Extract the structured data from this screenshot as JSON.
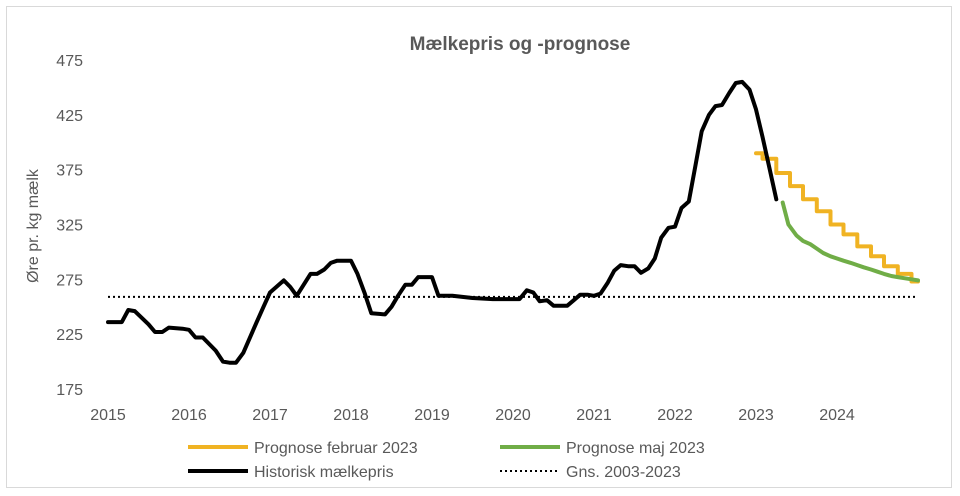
{
  "chart_data": {
    "type": "line",
    "title": "Mælkepris og -prognose",
    "xlabel": "",
    "ylabel": "Øre pr. kg mælk",
    "xlim": [
      2015,
      2025
    ],
    "ylim": [
      175,
      475
    ],
    "yticks": [
      175,
      225,
      275,
      325,
      375,
      425,
      475
    ],
    "xticks": [
      2015,
      2016,
      2017,
      2018,
      2019,
      2020,
      2021,
      2022,
      2023,
      2024
    ],
    "grid": false,
    "legend_position": "bottom",
    "series": [
      {
        "name": "Prognose februar 2023",
        "color": "#f0b323",
        "style": "solid",
        "points": [
          [
            2023.0,
            390
          ],
          [
            2023.08,
            390
          ],
          [
            2023.08,
            385
          ],
          [
            2023.25,
            385
          ],
          [
            2023.25,
            372
          ],
          [
            2023.42,
            372
          ],
          [
            2023.42,
            360
          ],
          [
            2023.58,
            360
          ],
          [
            2023.58,
            348
          ],
          [
            2023.75,
            348
          ],
          [
            2023.75,
            337
          ],
          [
            2023.92,
            337
          ],
          [
            2023.92,
            325
          ],
          [
            2024.08,
            325
          ],
          [
            2024.08,
            316
          ],
          [
            2024.25,
            316
          ],
          [
            2024.25,
            305
          ],
          [
            2024.42,
            305
          ],
          [
            2024.42,
            296
          ],
          [
            2024.58,
            296
          ],
          [
            2024.58,
            287
          ],
          [
            2024.75,
            287
          ],
          [
            2024.75,
            280
          ],
          [
            2024.92,
            280
          ],
          [
            2024.92,
            273
          ],
          [
            2025.0,
            273
          ]
        ]
      },
      {
        "name": "Prognose maj 2023",
        "color": "#70ad47",
        "style": "solid",
        "points": [
          [
            2023.33,
            345
          ],
          [
            2023.4,
            325
          ],
          [
            2023.5,
            315
          ],
          [
            2023.58,
            310
          ],
          [
            2023.67,
            307
          ],
          [
            2023.75,
            303
          ],
          [
            2023.83,
            299
          ],
          [
            2023.92,
            296
          ],
          [
            2024.0,
            294
          ],
          [
            2024.08,
            292
          ],
          [
            2024.17,
            290
          ],
          [
            2024.25,
            288
          ],
          [
            2024.33,
            286
          ],
          [
            2024.42,
            284
          ],
          [
            2024.5,
            282
          ],
          [
            2024.58,
            280
          ],
          [
            2024.67,
            278
          ],
          [
            2024.75,
            277
          ],
          [
            2024.83,
            276
          ],
          [
            2024.92,
            275
          ],
          [
            2025.0,
            274
          ]
        ]
      },
      {
        "name": "Historisk mælkepris",
        "color": "#000000",
        "style": "solid",
        "points": [
          [
            2015.0,
            236
          ],
          [
            2015.17,
            236
          ],
          [
            2015.25,
            247
          ],
          [
            2015.33,
            246
          ],
          [
            2015.5,
            234
          ],
          [
            2015.58,
            227
          ],
          [
            2015.67,
            227
          ],
          [
            2015.75,
            231
          ],
          [
            2015.92,
            230
          ],
          [
            2016.0,
            229
          ],
          [
            2016.08,
            222
          ],
          [
            2016.17,
            222
          ],
          [
            2016.33,
            210
          ],
          [
            2016.42,
            200
          ],
          [
            2016.5,
            199
          ],
          [
            2016.58,
            199
          ],
          [
            2016.67,
            208
          ],
          [
            2016.83,
            235
          ],
          [
            2016.92,
            250
          ],
          [
            2017.0,
            263
          ],
          [
            2017.17,
            274
          ],
          [
            2017.25,
            268
          ],
          [
            2017.33,
            260
          ],
          [
            2017.5,
            280
          ],
          [
            2017.58,
            280
          ],
          [
            2017.67,
            284
          ],
          [
            2017.75,
            290
          ],
          [
            2017.83,
            292
          ],
          [
            2018.0,
            292
          ],
          [
            2018.08,
            280
          ],
          [
            2018.17,
            262
          ],
          [
            2018.25,
            244
          ],
          [
            2018.42,
            243
          ],
          [
            2018.5,
            250
          ],
          [
            2018.58,
            260
          ],
          [
            2018.67,
            270
          ],
          [
            2018.75,
            270
          ],
          [
            2018.83,
            277
          ],
          [
            2019.0,
            277
          ],
          [
            2019.08,
            260
          ],
          [
            2019.25,
            260
          ],
          [
            2019.5,
            258
          ],
          [
            2019.75,
            257
          ],
          [
            2020.0,
            257
          ],
          [
            2020.08,
            257
          ],
          [
            2020.17,
            265
          ],
          [
            2020.25,
            263
          ],
          [
            2020.33,
            255
          ],
          [
            2020.42,
            256
          ],
          [
            2020.5,
            251
          ],
          [
            2020.67,
            251
          ],
          [
            2020.75,
            256
          ],
          [
            2020.83,
            261
          ],
          [
            2020.92,
            261
          ],
          [
            2021.0,
            260
          ],
          [
            2021.08,
            262
          ],
          [
            2021.17,
            272
          ],
          [
            2021.25,
            283
          ],
          [
            2021.33,
            288
          ],
          [
            2021.42,
            287
          ],
          [
            2021.5,
            287
          ],
          [
            2021.58,
            281
          ],
          [
            2021.67,
            285
          ],
          [
            2021.75,
            294
          ],
          [
            2021.83,
            313
          ],
          [
            2021.92,
            322
          ],
          [
            2022.0,
            323
          ],
          [
            2022.08,
            340
          ],
          [
            2022.17,
            346
          ],
          [
            2022.25,
            378
          ],
          [
            2022.33,
            410
          ],
          [
            2022.42,
            425
          ],
          [
            2022.5,
            433
          ],
          [
            2022.58,
            434
          ],
          [
            2022.67,
            445
          ],
          [
            2022.75,
            454
          ],
          [
            2022.83,
            455
          ],
          [
            2022.92,
            448
          ],
          [
            2023.0,
            430
          ],
          [
            2023.08,
            405
          ],
          [
            2023.17,
            375
          ],
          [
            2023.25,
            348
          ]
        ]
      },
      {
        "name": "Gns. 2003-2023",
        "color": "#000000",
        "style": "dotted",
        "points": [
          [
            2015.0,
            259
          ],
          [
            2025.0,
            259
          ]
        ]
      }
    ],
    "legend": [
      {
        "label": "Prognose februar 2023",
        "color": "#f0b323",
        "style": "solid"
      },
      {
        "label": "Prognose maj 2023",
        "color": "#70ad47",
        "style": "solid"
      },
      {
        "label": "Historisk mælkepris",
        "color": "#000000",
        "style": "solid"
      },
      {
        "label": "Gns. 2003-2023",
        "color": "#000000",
        "style": "dotted"
      }
    ]
  }
}
